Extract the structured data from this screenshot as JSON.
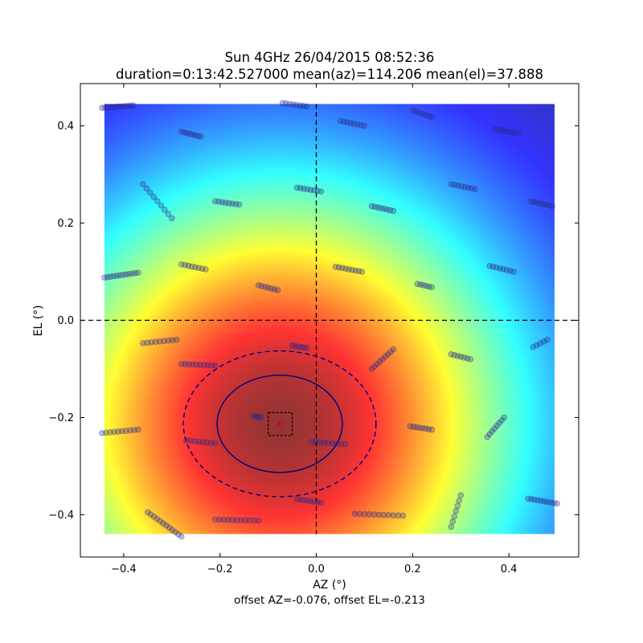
{
  "chart_data": {
    "type": "heatmap",
    "title": "Sun 4GHz 26/04/2015 08:52:36",
    "subtitle": "duration=0:13:42.527000 mean(az)=114.206 mean(el)=37.888",
    "xlabel": "AZ (°)",
    "ylabel": "EL (°)",
    "caption": "offset AZ=-0.076, offset EL=-0.213",
    "xlim": [
      -0.49,
      0.545
    ],
    "ylim": [
      -0.487,
      0.487
    ],
    "image_extent": {
      "x": [
        -0.44,
        0.495
      ],
      "y": [
        -0.44,
        0.445
      ]
    },
    "x_ticks": [
      -0.4,
      -0.2,
      0.0,
      0.2,
      0.4
    ],
    "y_ticks": [
      -0.4,
      -0.2,
      0.0,
      0.2,
      0.4
    ],
    "x_tick_labels": [
      "−0.4",
      "−0.2",
      "0.0",
      "0.2",
      "0.4"
    ],
    "y_tick_labels": [
      "−0.4",
      "−0.2",
      "0.0",
      "0.2",
      "0.4"
    ],
    "colormap": "jet",
    "colormap_alpha": 0.8,
    "beam_model": {
      "center_az": -0.076,
      "center_el": -0.213,
      "sigma": 0.37
    },
    "offset": {
      "az": -0.076,
      "el": -0.213
    },
    "crosshair": {
      "az": 0.0,
      "el": 0.0
    },
    "ellipses": [
      {
        "name": "inner",
        "style": "solid",
        "center": [
          -0.076,
          -0.213
        ],
        "radius_az": 0.13,
        "radius_el": 0.1
      },
      {
        "name": "outer",
        "style": "dashed",
        "center": [
          -0.076,
          -0.213
        ],
        "radius_az": 0.2,
        "radius_el": 0.15
      }
    ],
    "center_box": {
      "az": [
        -0.1,
        -0.05
      ],
      "el": [
        -0.237,
        -0.19
      ]
    },
    "center_marker": {
      "az": -0.076,
      "el": -0.213
    },
    "point_color": "#2b2b8c",
    "scan_segments": [
      {
        "start": [
          -0.445,
          0.437
        ],
        "end": [
          -0.38,
          0.442
        ],
        "n": 12
      },
      {
        "start": [
          -0.28,
          0.388
        ],
        "end": [
          -0.24,
          0.378
        ],
        "n": 8
      },
      {
        "start": [
          -0.07,
          0.447
        ],
        "end": [
          -0.02,
          0.44
        ],
        "n": 8
      },
      {
        "start": [
          0.05,
          0.41
        ],
        "end": [
          0.1,
          0.4
        ],
        "n": 8
      },
      {
        "start": [
          0.2,
          0.432
        ],
        "end": [
          0.24,
          0.418
        ],
        "n": 7
      },
      {
        "start": [
          0.37,
          0.393
        ],
        "end": [
          0.42,
          0.385
        ],
        "n": 9
      },
      {
        "start": [
          -0.36,
          0.28
        ],
        "end": [
          -0.3,
          0.21
        ],
        "n": 9
      },
      {
        "start": [
          -0.21,
          0.245
        ],
        "end": [
          -0.16,
          0.238
        ],
        "n": 8
      },
      {
        "start": [
          -0.04,
          0.273
        ],
        "end": [
          0.01,
          0.265
        ],
        "n": 8
      },
      {
        "start": [
          0.115,
          0.235
        ],
        "end": [
          0.16,
          0.225
        ],
        "n": 8
      },
      {
        "start": [
          0.28,
          0.28
        ],
        "end": [
          0.33,
          0.27
        ],
        "n": 8
      },
      {
        "start": [
          0.445,
          0.245
        ],
        "end": [
          0.49,
          0.235
        ],
        "n": 8
      },
      {
        "start": [
          -0.44,
          0.088
        ],
        "end": [
          -0.37,
          0.098
        ],
        "n": 12
      },
      {
        "start": [
          -0.28,
          0.115
        ],
        "end": [
          -0.23,
          0.105
        ],
        "n": 8
      },
      {
        "start": [
          -0.12,
          0.072
        ],
        "end": [
          -0.08,
          0.062
        ],
        "n": 7
      },
      {
        "start": [
          0.04,
          0.11
        ],
        "end": [
          0.095,
          0.1
        ],
        "n": 9
      },
      {
        "start": [
          0.21,
          0.075
        ],
        "end": [
          0.24,
          0.068
        ],
        "n": 6
      },
      {
        "start": [
          0.36,
          0.112
        ],
        "end": [
          0.41,
          0.1
        ],
        "n": 8
      },
      {
        "start": [
          -0.36,
          -0.047
        ],
        "end": [
          -0.29,
          -0.04
        ],
        "n": 9
      },
      {
        "start": [
          -0.05,
          -0.052
        ],
        "end": [
          -0.02,
          -0.057
        ],
        "n": 6
      },
      {
        "start": [
          0.115,
          -0.1
        ],
        "end": [
          0.16,
          -0.06
        ],
        "n": 9
      },
      {
        "start": [
          0.28,
          -0.07
        ],
        "end": [
          0.32,
          -0.08
        ],
        "n": 7
      },
      {
        "start": [
          0.45,
          -0.055
        ],
        "end": [
          0.48,
          -0.04
        ],
        "n": 5
      },
      {
        "start": [
          -0.28,
          -0.09
        ],
        "end": [
          -0.21,
          -0.093
        ],
        "n": 10
      },
      {
        "start": [
          -0.13,
          -0.197
        ],
        "end": [
          -0.115,
          -0.2
        ],
        "n": 5
      },
      {
        "start": [
          0.195,
          -0.218
        ],
        "end": [
          0.24,
          -0.225
        ],
        "n": 8
      },
      {
        "start": [
          0.355,
          -0.24
        ],
        "end": [
          0.39,
          -0.2
        ],
        "n": 8
      },
      {
        "start": [
          -0.445,
          -0.232
        ],
        "end": [
          -0.37,
          -0.225
        ],
        "n": 10
      },
      {
        "start": [
          -0.27,
          -0.247
        ],
        "end": [
          -0.21,
          -0.253
        ],
        "n": 8
      },
      {
        "start": [
          -0.01,
          -0.25
        ],
        "end": [
          0.06,
          -0.255
        ],
        "n": 9
      },
      {
        "start": [
          -0.35,
          -0.395
        ],
        "end": [
          -0.28,
          -0.445
        ],
        "n": 12
      },
      {
        "start": [
          -0.21,
          -0.41
        ],
        "end": [
          -0.12,
          -0.412
        ],
        "n": 11
      },
      {
        "start": [
          -0.04,
          -0.368
        ],
        "end": [
          0.01,
          -0.375
        ],
        "n": 8
      },
      {
        "start": [
          0.08,
          -0.398
        ],
        "end": [
          0.18,
          -0.402
        ],
        "n": 11
      },
      {
        "start": [
          0.28,
          -0.425
        ],
        "end": [
          0.3,
          -0.36
        ],
        "n": 7
      },
      {
        "start": [
          0.44,
          -0.367
        ],
        "end": [
          0.5,
          -0.377
        ],
        "n": 10
      }
    ]
  }
}
